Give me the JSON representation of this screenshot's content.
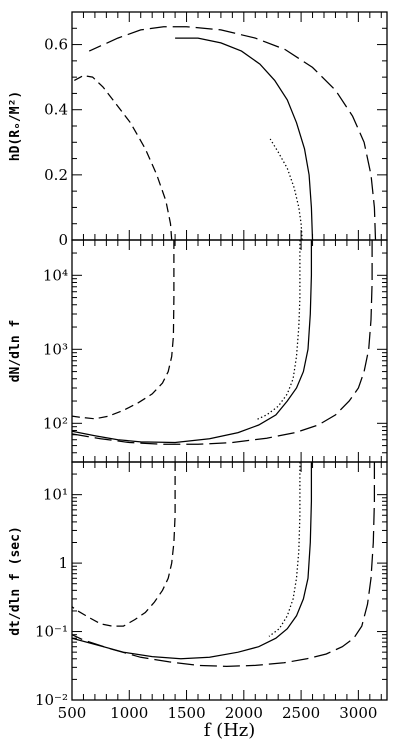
{
  "chart_data": [
    {
      "type": "line",
      "ylabel": "hD(Rₒ/M²)",
      "xlabel": "",
      "xlim": [
        500,
        3250
      ],
      "ylim": [
        0,
        0.7
      ],
      "yscale": "linear",
      "yticks": [
        {
          "v": 0,
          "label": "0"
        },
        {
          "v": 0.2,
          "label": "0.2"
        },
        {
          "v": 0.4,
          "label": "0.4"
        },
        {
          "v": 0.6,
          "label": "0.6"
        }
      ],
      "series": [
        {
          "style": "short-dash",
          "x": [
            1370,
            1360,
            1320,
            1240,
            1140,
            1010,
            880,
            770,
            680,
            600,
            520
          ],
          "y": [
            0,
            0.05,
            0.12,
            0.2,
            0.28,
            0.36,
            0.42,
            0.47,
            0.5,
            0.505,
            0.49
          ]
        },
        {
          "style": "solid",
          "x": [
            2600,
            2590,
            2570,
            2530,
            2460,
            2380,
            2270,
            2140,
            1980,
            1800,
            1600,
            1400
          ],
          "y": [
            0,
            0.1,
            0.2,
            0.28,
            0.36,
            0.43,
            0.49,
            0.54,
            0.58,
            0.605,
            0.62,
            0.62
          ]
        },
        {
          "style": "long-dash",
          "x": [
            3150,
            3140,
            3110,
            3050,
            2950,
            2800,
            2600,
            2360,
            2100,
            1800,
            1500,
            1300,
            1100,
            900,
            650
          ],
          "y": [
            0,
            0.1,
            0.2,
            0.3,
            0.38,
            0.46,
            0.53,
            0.585,
            0.62,
            0.645,
            0.655,
            0.655,
            0.645,
            0.62,
            0.58
          ]
        },
        {
          "style": "dotted",
          "x": [
            2510,
            2500,
            2480,
            2440,
            2380,
            2300,
            2230
          ],
          "y": [
            0,
            0.05,
            0.1,
            0.16,
            0.22,
            0.27,
            0.31
          ]
        }
      ]
    },
    {
      "type": "line",
      "ylabel": "dN/dln f",
      "xlabel": "",
      "xlim": [
        500,
        3250
      ],
      "ylim": [
        30,
        30000
      ],
      "yscale": "log",
      "yticks": [
        {
          "v": 100,
          "label": "10²"
        },
        {
          "v": 1000,
          "label": "10³"
        },
        {
          "v": 10000,
          "label": "10⁴"
        }
      ],
      "series": [
        {
          "style": "short-dash",
          "x": [
            1390,
            1390,
            1385,
            1370,
            1340,
            1290,
            1200,
            1080,
            950,
            820,
            700,
            580,
            500
          ],
          "y": [
            30000,
            5000,
            1500,
            800,
            500,
            350,
            250,
            190,
            150,
            125,
            115,
            120,
            125
          ]
        },
        {
          "style": "solid",
          "x": [
            2590,
            2590,
            2580,
            2560,
            2520,
            2460,
            2380,
            2280,
            2130,
            1950,
            1700,
            1400,
            1100,
            900,
            700,
            500
          ],
          "y": [
            30000,
            10000,
            3000,
            1000,
            500,
            300,
            200,
            130,
            95,
            75,
            62,
            55,
            56,
            60,
            68,
            78
          ]
        },
        {
          "style": "long-dash",
          "x": [
            3120,
            3120,
            3110,
            3090,
            3050,
            3000,
            2920,
            2800,
            2650,
            2450,
            2200,
            1900,
            1600,
            1300,
            1000,
            750,
            500
          ],
          "y": [
            30000,
            8000,
            2500,
            1000,
            500,
            300,
            200,
            130,
            95,
            75,
            63,
            55,
            52,
            52,
            55,
            62,
            72
          ]
        },
        {
          "style": "dotted",
          "x": [
            2490,
            2490,
            2480,
            2460,
            2430,
            2380,
            2300,
            2200,
            2100
          ],
          "y": [
            30000,
            5000,
            2000,
            800,
            400,
            250,
            170,
            130,
            110
          ]
        }
      ]
    },
    {
      "type": "line",
      "ylabel": "dt/dln f (sec)",
      "xlabel": "f (Hz)",
      "xlim": [
        500,
        3250
      ],
      "ylim": [
        0.01,
        30
      ],
      "yscale": "log",
      "yticks": [
        {
          "v": 0.01,
          "label": "10⁻²"
        },
        {
          "v": 0.1,
          "label": "10⁻¹"
        },
        {
          "v": 1,
          "label": "1"
        },
        {
          "v": 10,
          "label": "10¹"
        }
      ],
      "xticks": [
        {
          "v": 500,
          "label": "500"
        },
        {
          "v": 1000,
          "label": "1000"
        },
        {
          "v": 1500,
          "label": "1500"
        },
        {
          "v": 2000,
          "label": "2000"
        },
        {
          "v": 2500,
          "label": "2500"
        },
        {
          "v": 3000,
          "label": "3000"
        }
      ],
      "series": [
        {
          "style": "short-dash",
          "x": [
            1400,
            1400,
            1390,
            1370,
            1340,
            1290,
            1220,
            1140,
            1050,
            950,
            850,
            750,
            650,
            550,
            500
          ],
          "y": [
            30,
            5,
            2,
            1,
            0.6,
            0.4,
            0.27,
            0.19,
            0.15,
            0.12,
            0.12,
            0.13,
            0.16,
            0.2,
            0.23
          ]
        },
        {
          "style": "solid",
          "x": [
            2590,
            2590,
            2580,
            2560,
            2520,
            2460,
            2380,
            2280,
            2130,
            1950,
            1700,
            1450,
            1200,
            950,
            700,
            500
          ],
          "y": [
            30,
            8,
            2,
            0.6,
            0.3,
            0.17,
            0.11,
            0.08,
            0.06,
            0.05,
            0.042,
            0.04,
            0.043,
            0.05,
            0.065,
            0.08
          ]
        },
        {
          "style": "long-dash",
          "x": [
            3140,
            3140,
            3130,
            3110,
            3080,
            3030,
            2960,
            2860,
            2720,
            2550,
            2350,
            2100,
            1850,
            1600,
            1350,
            1100,
            850,
            600,
            500
          ],
          "y": [
            30,
            8,
            2,
            0.6,
            0.25,
            0.12,
            0.08,
            0.06,
            0.047,
            0.04,
            0.035,
            0.032,
            0.031,
            0.032,
            0.036,
            0.042,
            0.055,
            0.075,
            0.09
          ]
        },
        {
          "style": "dotted",
          "x": [
            2490,
            2490,
            2480,
            2460,
            2430,
            2380,
            2310,
            2220
          ],
          "y": [
            30,
            5,
            1.5,
            0.6,
            0.3,
            0.17,
            0.11,
            0.085
          ]
        }
      ]
    }
  ]
}
